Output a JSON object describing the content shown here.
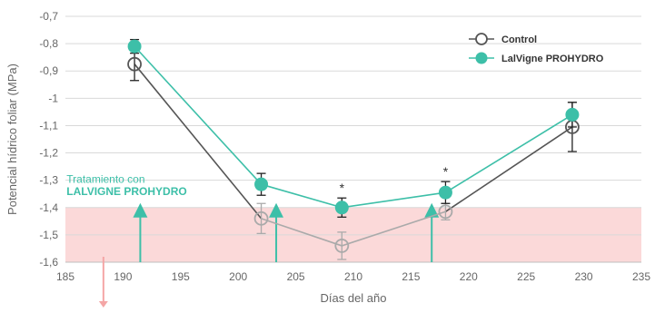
{
  "chart_data": {
    "type": "line",
    "xlabel": "Días del año",
    "ylabel": "Potencial hídrico foliar (MPa)",
    "xlim": [
      185,
      235
    ],
    "ylim": [
      -1.6,
      -0.7
    ],
    "x_ticks": [
      185,
      190,
      195,
      200,
      205,
      210,
      215,
      220,
      225,
      230,
      235
    ],
    "x_tick_labels": [
      "185",
      "190",
      "195",
      "200",
      "205",
      "210",
      "215",
      "220",
      "225",
      "230",
      "235"
    ],
    "y_ticks": [
      -0.7,
      -0.8,
      -0.9,
      -1.0,
      -1.1,
      -1.2,
      -1.3,
      -1.4,
      -1.5,
      -1.6
    ],
    "y_tick_labels": [
      "-0,7",
      "-0,8",
      "-0,9",
      "-1",
      "-1,1",
      "-1,2",
      "-1,3",
      "-1,4",
      "-1,5",
      "-1,6"
    ],
    "grid": "horizontal",
    "legend_position": "top-right",
    "stress_zone": {
      "from": -1.6,
      "to": -1.4,
      "color": "#fbd9d9"
    },
    "series": [
      {
        "name": "Control",
        "color": "#555555",
        "faded_color": "#aaaaaa",
        "marker": "open-circle",
        "x": [
          191,
          202,
          209,
          218,
          229
        ],
        "y": [
          -0.875,
          -1.44,
          -1.54,
          -1.415,
          -1.105
        ],
        "err": [
          0.06,
          0.055,
          0.05,
          0.03,
          0.09
        ]
      },
      {
        "name": "LalVigne PROHYDRO",
        "color": "#3dbfa8",
        "marker": "filled-circle",
        "x": [
          191,
          202,
          209,
          218,
          229
        ],
        "y": [
          -0.81,
          -1.315,
          -1.4,
          -1.345,
          -1.06
        ],
        "err": [
          0.025,
          0.04,
          0.035,
          0.04,
          0.045
        ]
      }
    ],
    "significance": [
      {
        "x": 209,
        "label": "*"
      },
      {
        "x": 218,
        "label": "*"
      }
    ],
    "annotation": {
      "line1": "Tratamiento con",
      "line2": "LALVIGNE PROHYDRO"
    },
    "treatment_arrows_x": [
      191.5,
      203.3,
      216.8
    ],
    "down_arrow_color": "#f4a6a6"
  }
}
